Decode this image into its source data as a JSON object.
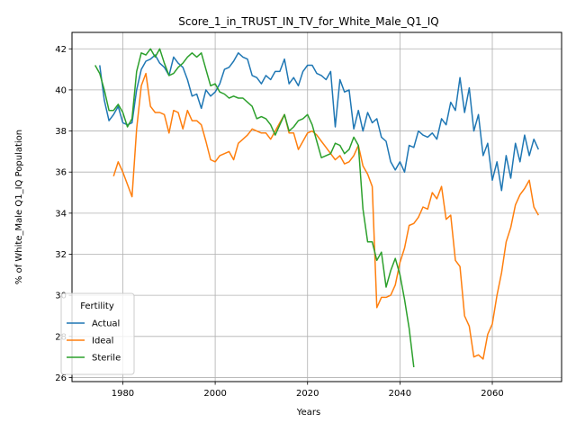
{
  "chart_data": {
    "type": "line",
    "title": "Score_1_in_TRUST_IN_TV_for_White_Male_Q1_IQ",
    "xlabel": "Years",
    "ylabel": "% of White_Male Q1_IQ Population",
    "xlim": [
      1969,
      2075
    ],
    "ylim": [
      25.8,
      42.8
    ],
    "xticks": [
      1980,
      2000,
      2020,
      2040,
      2060
    ],
    "yticks": [
      26,
      28,
      30,
      32,
      34,
      36,
      38,
      40,
      42
    ],
    "grid": true,
    "legend": {
      "title": "Fertility",
      "position": "lower-left"
    },
    "series": [
      {
        "name": "Actual",
        "color": "#1f77b4",
        "x": [
          1975,
          1976,
          1977,
          1978,
          1979,
          1980,
          1981,
          1982,
          1983,
          1984,
          1985,
          1986,
          1987,
          1988,
          1989,
          1990,
          1991,
          1992,
          1993,
          1994,
          1995,
          1996,
          1997,
          1998,
          1999,
          2000,
          2001,
          2002,
          2003,
          2004,
          2005,
          2006,
          2007,
          2008,
          2009,
          2010,
          2011,
          2012,
          2013,
          2014,
          2015,
          2016,
          2017,
          2018,
          2019,
          2020,
          2021,
          2022,
          2023,
          2024,
          2025,
          2026,
          2027,
          2028,
          2029,
          2030,
          2031,
          2032,
          2033,
          2034,
          2035,
          2036,
          2037,
          2038,
          2039,
          2040,
          2041,
          2042,
          2043,
          2044,
          2045,
          2046,
          2047,
          2048,
          2049,
          2050,
          2051,
          2052,
          2053,
          2054,
          2055,
          2056,
          2057,
          2058,
          2059,
          2060,
          2061,
          2062,
          2063,
          2064,
          2065,
          2066,
          2067,
          2068,
          2069,
          2070
        ],
        "y": [
          41.2,
          39.5,
          38.5,
          38.8,
          39.2,
          38.4,
          38.3,
          38.4,
          40.0,
          41.0,
          41.4,
          41.5,
          41.7,
          41.3,
          41.1,
          40.7,
          41.6,
          41.3,
          41.1,
          40.5,
          39.7,
          39.8,
          39.1,
          40.0,
          39.7,
          39.9,
          40.3,
          41.0,
          41.1,
          41.4,
          41.8,
          41.6,
          41.5,
          40.7,
          40.6,
          40.3,
          40.7,
          40.5,
          40.9,
          40.9,
          41.5,
          40.3,
          40.6,
          40.2,
          40.9,
          41.2,
          41.2,
          40.8,
          40.7,
          40.5,
          40.9,
          38.2,
          40.5,
          39.9,
          40.0,
          38.1,
          39.0,
          38.0,
          38.9,
          38.4,
          38.6,
          37.7,
          37.5,
          36.5,
          36.1,
          36.5,
          36.0,
          37.3,
          37.2,
          38.0,
          37.8,
          37.7,
          37.9,
          37.6,
          38.6,
          38.3,
          39.4,
          39.0,
          40.6,
          38.9,
          40.1,
          38.0,
          38.8,
          36.8,
          37.4,
          35.6,
          36.5,
          35.1,
          36.8,
          35.7,
          37.4,
          36.5,
          37.8,
          36.8,
          37.6,
          37.1
        ]
      },
      {
        "name": "Ideal",
        "color": "#ff7f0e",
        "x": [
          1978,
          1979,
          1980,
          1981,
          1982,
          1983,
          1984,
          1985,
          1986,
          1987,
          1988,
          1989,
          1990,
          1991,
          1992,
          1993,
          1994,
          1995,
          1996,
          1997,
          1998,
          1999,
          2000,
          2001,
          2002,
          2003,
          2004,
          2005,
          2006,
          2007,
          2008,
          2009,
          2010,
          2011,
          2012,
          2013,
          2014,
          2015,
          2016,
          2017,
          2018,
          2019,
          2020,
          2021,
          2022,
          2023,
          2024,
          2025,
          2026,
          2027,
          2028,
          2029,
          2030,
          2031,
          2032,
          2033,
          2034,
          2035,
          2036,
          2037,
          2038,
          2039,
          2040,
          2041,
          2042,
          2043,
          2044,
          2045,
          2046,
          2047,
          2048,
          2049,
          2050,
          2051,
          2052,
          2053,
          2054,
          2055,
          2056,
          2057,
          2058,
          2059,
          2060,
          2061,
          2062,
          2063,
          2064,
          2065,
          2066,
          2067,
          2068,
          2069,
          2070
        ],
        "y": [
          35.8,
          36.5,
          36.0,
          35.4,
          34.8,
          38.1,
          40.2,
          40.8,
          39.2,
          38.9,
          38.9,
          38.8,
          37.9,
          39.0,
          38.9,
          38.1,
          39.0,
          38.5,
          38.5,
          38.3,
          37.5,
          36.6,
          36.5,
          36.8,
          36.9,
          37.0,
          36.6,
          37.4,
          37.6,
          37.8,
          38.1,
          38.0,
          37.9,
          37.9,
          37.6,
          38.0,
          38.4,
          38.8,
          37.9,
          37.9,
          37.1,
          37.5,
          37.9,
          38.0,
          37.8,
          37.5,
          37.2,
          36.9,
          36.6,
          36.8,
          36.4,
          36.5,
          36.8,
          37.3,
          36.3,
          35.9,
          35.3,
          29.4,
          29.9,
          29.9,
          30.0,
          30.5,
          31.6,
          32.3,
          33.4,
          33.5,
          33.8,
          34.3,
          34.2,
          35.0,
          34.7,
          35.3,
          33.7,
          33.9,
          31.7,
          31.4,
          29.0,
          28.5,
          27.0,
          27.1,
          26.9,
          28.1,
          28.6,
          30.0,
          31.1,
          32.6,
          33.3,
          34.4,
          34.9,
          35.2,
          35.6,
          34.3,
          33.9
        ]
      },
      {
        "name": "Sterile",
        "color": "#2ca02c",
        "x": [
          1974,
          1975,
          1976,
          1977,
          1978,
          1979,
          1980,
          1981,
          1982,
          1983,
          1984,
          1985,
          1986,
          1987,
          1988,
          1989,
          1990,
          1991,
          1992,
          1993,
          1994,
          1995,
          1996,
          1997,
          1998,
          1999,
          2000,
          2001,
          2002,
          2003,
          2004,
          2005,
          2006,
          2007,
          2008,
          2009,
          2010,
          2011,
          2012,
          2013,
          2014,
          2015,
          2016,
          2017,
          2018,
          2019,
          2020,
          2021,
          2022,
          2023,
          2024,
          2025,
          2026,
          2027,
          2028,
          2029,
          2030,
          2031,
          2032,
          2033,
          2034,
          2035,
          2036,
          2037,
          2038,
          2039,
          2040,
          2041,
          2042,
          2043
        ],
        "y": [
          41.2,
          40.8,
          40.0,
          39.0,
          39.0,
          39.3,
          38.9,
          38.2,
          38.6,
          40.9,
          41.8,
          41.7,
          42.0,
          41.6,
          42.0,
          41.3,
          40.7,
          40.8,
          41.1,
          41.3,
          41.6,
          41.8,
          41.6,
          41.8,
          41.0,
          40.2,
          40.3,
          39.9,
          39.8,
          39.6,
          39.7,
          39.6,
          39.6,
          39.4,
          39.2,
          38.6,
          38.7,
          38.6,
          38.3,
          37.8,
          38.3,
          38.8,
          38.0,
          38.2,
          38.5,
          38.6,
          38.8,
          38.3,
          37.5,
          36.7,
          36.8,
          36.9,
          37.4,
          37.3,
          36.9,
          37.1,
          37.7,
          37.3,
          34.2,
          32.6,
          32.6,
          31.7,
          32.1,
          30.4,
          31.2,
          31.8,
          31.0,
          29.8,
          28.4,
          26.5
        ]
      }
    ]
  }
}
